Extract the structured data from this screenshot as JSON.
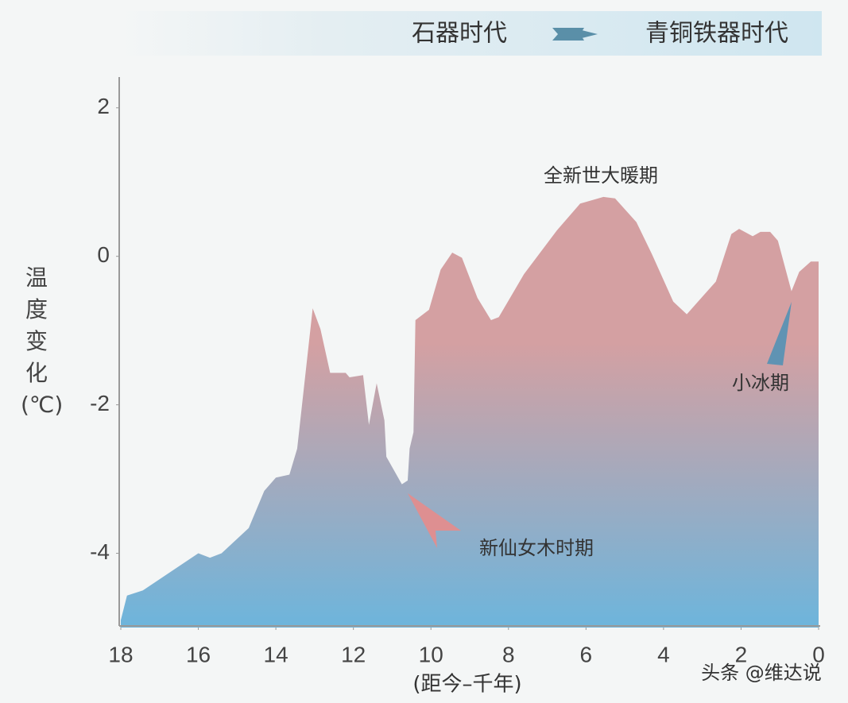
{
  "chart_data": {
    "type": "area",
    "header_left": "石器时代",
    "header_right": "青铜铁器时代",
    "y_label": "温度变化(℃)",
    "x_label": "(距今–千年)",
    "x": [
      18,
      17.84,
      17.43,
      16.0,
      15.7,
      15.4,
      14.7,
      14.3,
      14.0,
      13.65,
      13.45,
      13.05,
      12.85,
      12.6,
      12.2,
      12.1,
      11.75,
      11.6,
      11.4,
      11.2,
      11.15,
      10.75,
      10.6,
      10.55,
      10.45,
      10.4,
      10.05,
      9.75,
      9.45,
      9.2,
      8.8,
      8.45,
      8.25,
      7.6,
      6.75,
      6.15,
      5.55,
      5.25,
      4.7,
      4.3,
      3.75,
      3.4,
      2.65,
      2.25,
      2.05,
      1.7,
      1.5,
      1.25,
      1.05,
      0.7,
      0.5,
      0.2,
      0
    ],
    "series": [
      {
        "name": "温度变化",
        "color_top": "#d4a0a2",
        "color_bottom": "#6db5dc",
        "values": [
          -4.9,
          -4.57,
          -4.5,
          -4.0,
          -4.06,
          -4.0,
          -3.66,
          -3.16,
          -2.98,
          -2.94,
          -2.59,
          -0.7,
          -0.98,
          -1.57,
          -1.57,
          -1.63,
          -1.6,
          -2.27,
          -1.71,
          -2.21,
          -2.7,
          -3.07,
          -3.02,
          -2.59,
          -2.37,
          -0.86,
          -0.72,
          -0.18,
          0.05,
          -0.02,
          -0.56,
          -0.86,
          -0.82,
          -0.24,
          0.35,
          0.71,
          0.8,
          0.78,
          0.46,
          0.03,
          -0.61,
          -0.78,
          -0.34,
          0.3,
          0.37,
          0.27,
          0.33,
          0.33,
          0.21,
          -0.47,
          -0.21,
          -0.07,
          -0.07
        ]
      }
    ],
    "xlim": [
      18,
      0
    ],
    "ylim": [
      -5,
      2.5
    ],
    "xticks": [
      18,
      16,
      14,
      12,
      10,
      8,
      6,
      4,
      2,
      0
    ],
    "yticks": [
      2,
      0,
      -2,
      -4
    ],
    "annotations": [
      "全新世大暖期",
      "小冰期",
      "新仙女木时期"
    ],
    "watermark": "头条 @维达说"
  }
}
